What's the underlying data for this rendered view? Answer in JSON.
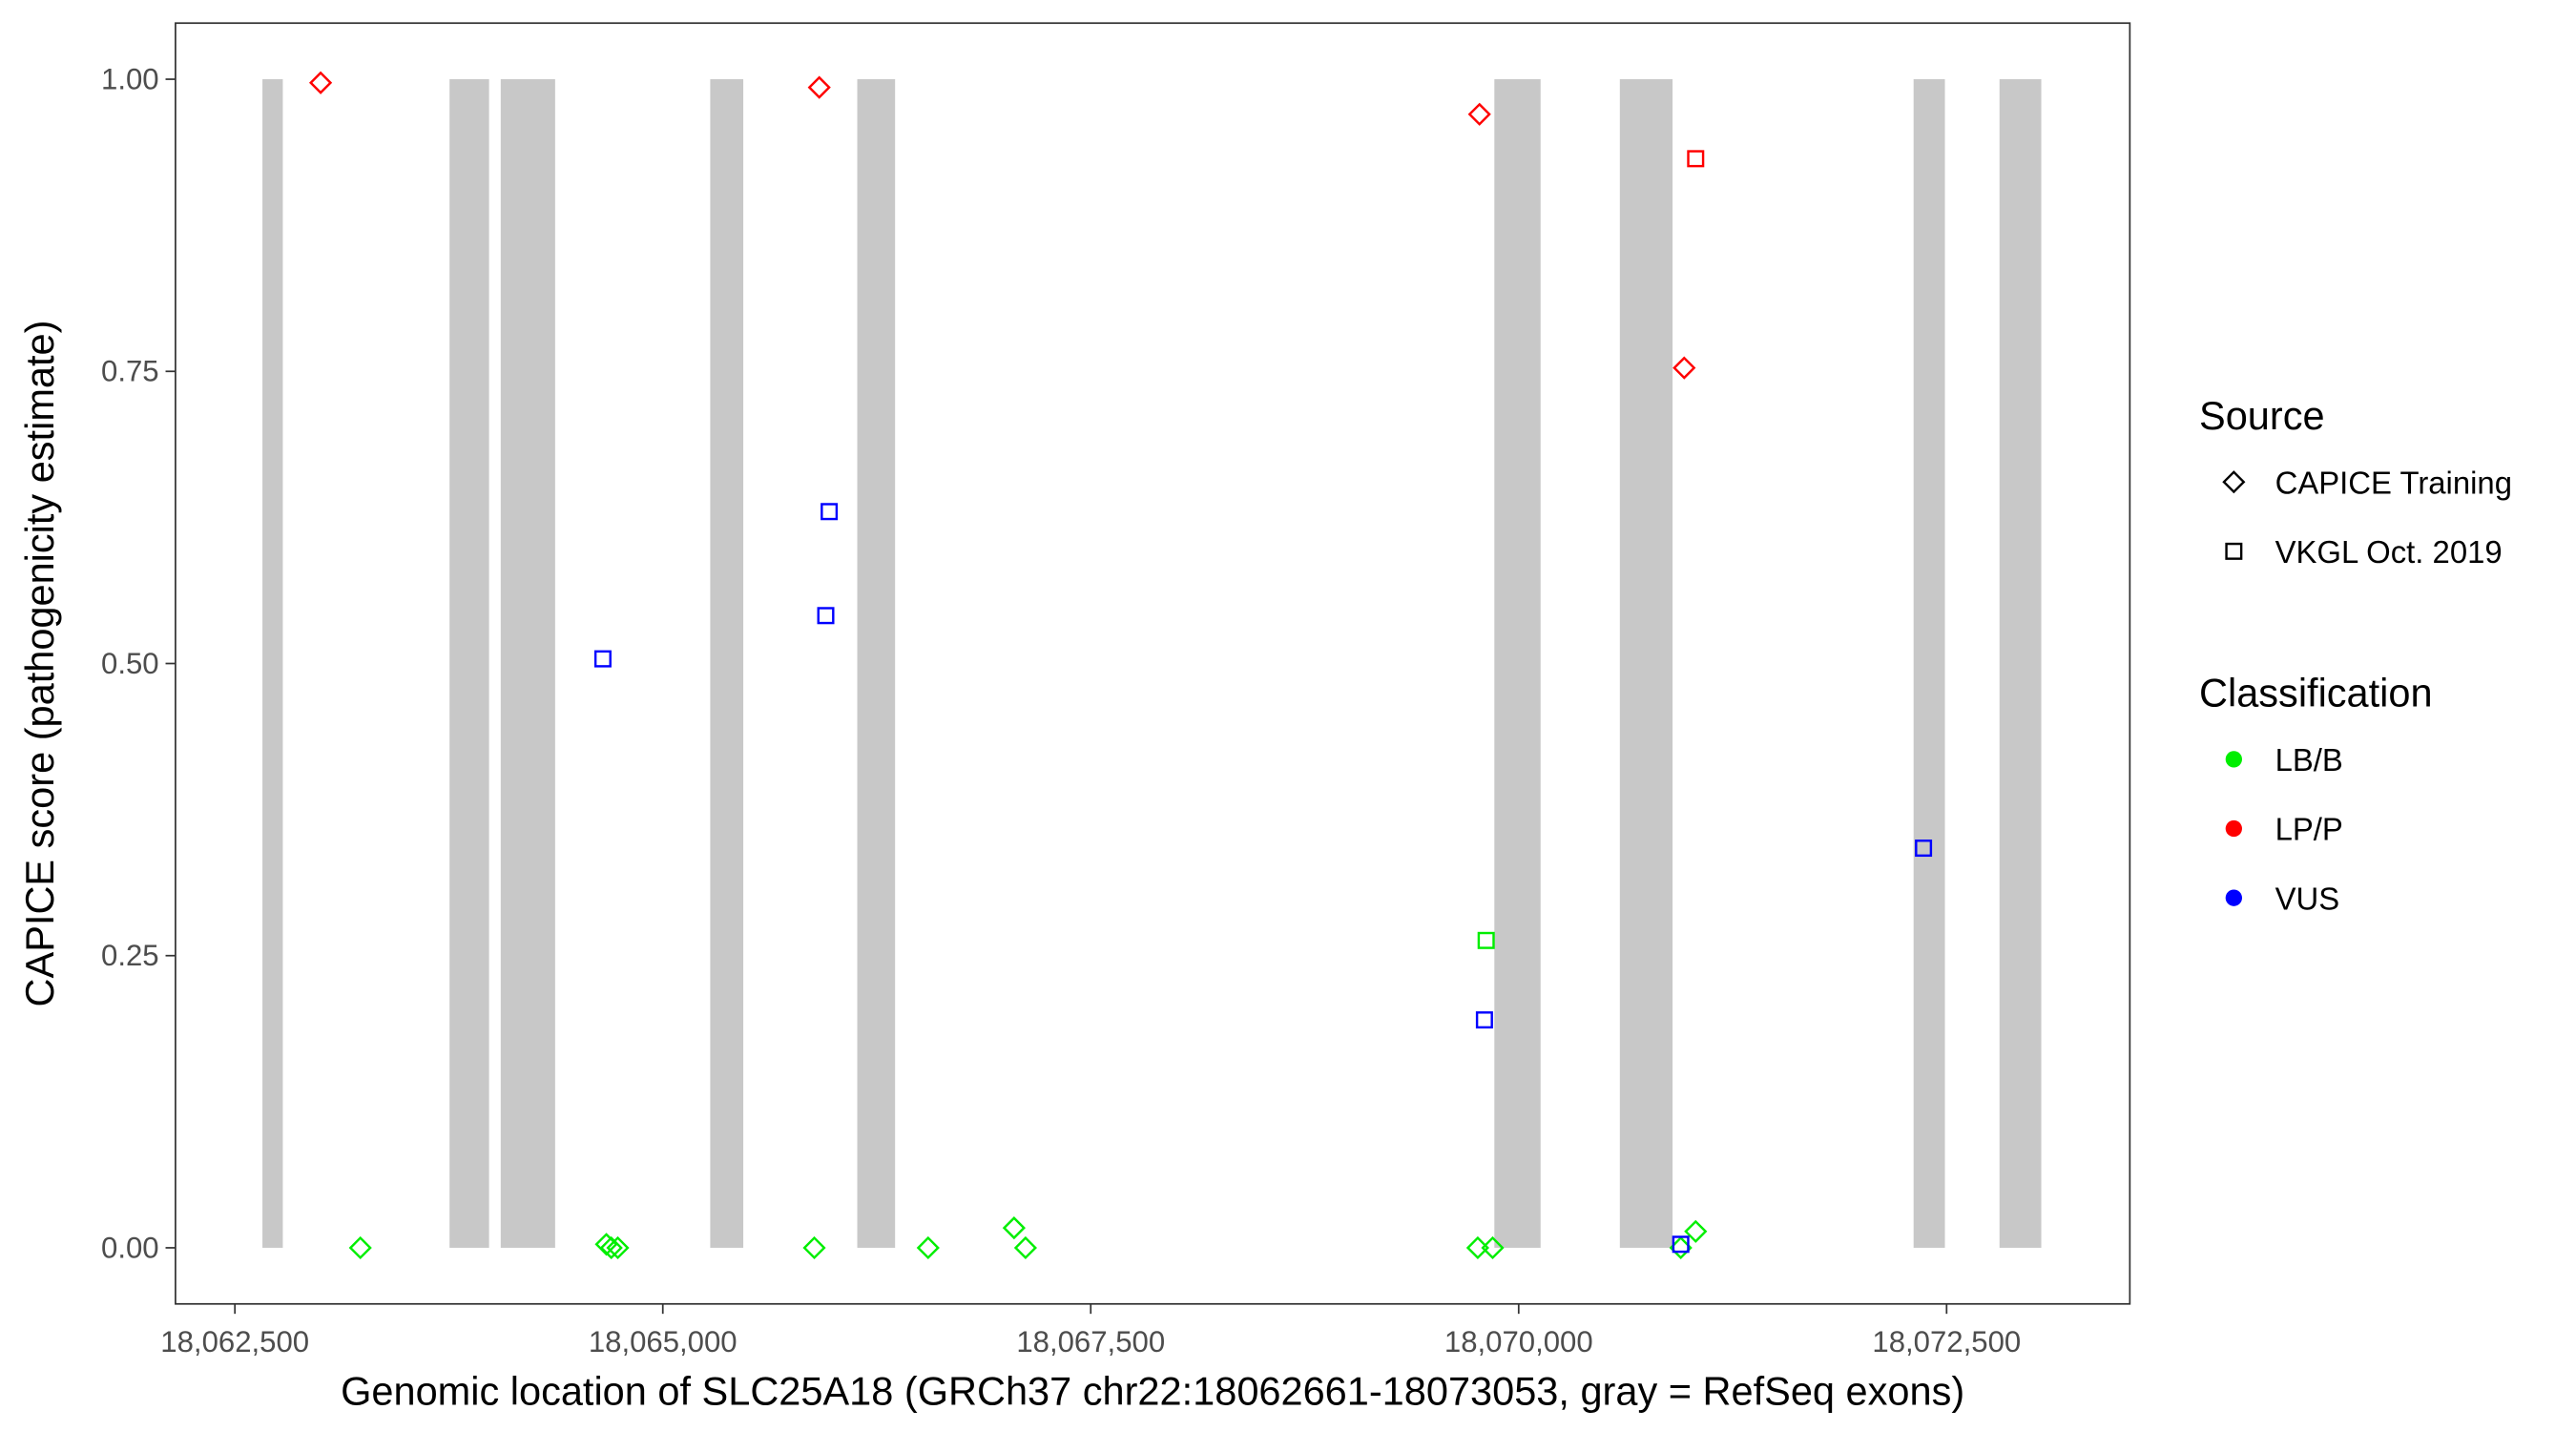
{
  "chart_data": {
    "type": "scatter",
    "xlabel": "Genomic location of SLC25A18 (GRCh37 chr22:18062661-18073053, gray = RefSeq exons)",
    "ylabel": "CAPICE score (pathogenicity estimate)",
    "xlim": [
      18062150,
      18073580
    ],
    "ylim": [
      -0.045,
      1.045
    ],
    "x_ticks": [
      18062500,
      18065000,
      18067500,
      18070000,
      18072500
    ],
    "x_tick_labels": [
      "18,062,500",
      "18,065,000",
      "18,067,500",
      "18,070,000",
      "18,072,500"
    ],
    "y_ticks": [
      0,
      0.25,
      0.5,
      0.75,
      1.0
    ],
    "y_tick_labels": [
      "0.00",
      "0.25",
      "0.50",
      "0.75",
      "1.00"
    ],
    "grid": false,
    "exons": [
      [
        18062661,
        18062780
      ],
      [
        18063754,
        18063985
      ],
      [
        18064053,
        18064371
      ],
      [
        18065277,
        18065470
      ],
      [
        18066136,
        18066357
      ],
      [
        18069858,
        18070128
      ],
      [
        18070591,
        18070899
      ],
      [
        18072307,
        18072490
      ],
      [
        18072809,
        18073053
      ]
    ],
    "exon_color": "#c8c8c8",
    "colors": {
      "LB/B": "#00ee00",
      "LP/P": "#ff0000",
      "VUS": "#0000ff"
    },
    "points": [
      {
        "x": 18063001,
        "y": 0.997,
        "source": "CAPICE Training",
        "class": "LP/P"
      },
      {
        "x": 18065914,
        "y": 0.993,
        "source": "CAPICE Training",
        "class": "LP/P"
      },
      {
        "x": 18069771,
        "y": 0.97,
        "source": "CAPICE Training",
        "class": "LP/P"
      },
      {
        "x": 18070967,
        "y": 0.753,
        "source": "CAPICE Training",
        "class": "LP/P"
      },
      {
        "x": 18071034,
        "y": 0.932,
        "source": "VKGL Oct. 2019",
        "class": "LP/P"
      },
      {
        "x": 18064650,
        "y": 0.504,
        "source": "VKGL Oct. 2019",
        "class": "VUS"
      },
      {
        "x": 18065972,
        "y": 0.63,
        "source": "VKGL Oct. 2019",
        "class": "VUS"
      },
      {
        "x": 18065952,
        "y": 0.541,
        "source": "VKGL Oct. 2019",
        "class": "VUS"
      },
      {
        "x": 18069800,
        "y": 0.195,
        "source": "VKGL Oct. 2019",
        "class": "VUS"
      },
      {
        "x": 18072365,
        "y": 0.342,
        "source": "VKGL Oct. 2019",
        "class": "VUS"
      },
      {
        "x": 18069810,
        "y": 0.263,
        "source": "VKGL Oct. 2019",
        "class": "LB/B"
      },
      {
        "x": 18063233,
        "y": 0.0,
        "source": "CAPICE Training",
        "class": "LB/B"
      },
      {
        "x": 18064670,
        "y": 0.003,
        "source": "CAPICE Training",
        "class": "LB/B"
      },
      {
        "x": 18064699,
        "y": 0.0,
        "source": "CAPICE Training",
        "class": "LB/B"
      },
      {
        "x": 18064737,
        "y": 0.0,
        "source": "CAPICE Training",
        "class": "LB/B"
      },
      {
        "x": 18065885,
        "y": 0.0,
        "source": "CAPICE Training",
        "class": "LB/B"
      },
      {
        "x": 18066550,
        "y": 0.0,
        "source": "CAPICE Training",
        "class": "LB/B"
      },
      {
        "x": 18067052,
        "y": 0.017,
        "source": "CAPICE Training",
        "class": "LB/B"
      },
      {
        "x": 18067119,
        "y": 0.0,
        "source": "CAPICE Training",
        "class": "LB/B"
      },
      {
        "x": 18069761,
        "y": 0.0,
        "source": "CAPICE Training",
        "class": "LB/B"
      },
      {
        "x": 18069848,
        "y": 0.0,
        "source": "CAPICE Training",
        "class": "LB/B"
      },
      {
        "x": 18070947,
        "y": 0.0,
        "source": "CAPICE Training",
        "class": "LB/B"
      },
      {
        "x": 18071034,
        "y": 0.014,
        "source": "CAPICE Training",
        "class": "LB/B"
      },
      {
        "x": 18070947,
        "y": 0.003,
        "source": "VKGL Oct. 2019",
        "class": "VUS"
      }
    ],
    "legend": {
      "placement": "right",
      "source_title": "Source",
      "source_items": [
        {
          "label": "CAPICE Training",
          "shape": "diamond"
        },
        {
          "label": "VKGL Oct. 2019",
          "shape": "square"
        }
      ],
      "class_title": "Classification",
      "class_items": [
        {
          "label": "LB/B",
          "color": "#00ee00"
        },
        {
          "label": "LP/P",
          "color": "#ff0000"
        },
        {
          "label": "VUS",
          "color": "#0000ff"
        }
      ]
    }
  }
}
